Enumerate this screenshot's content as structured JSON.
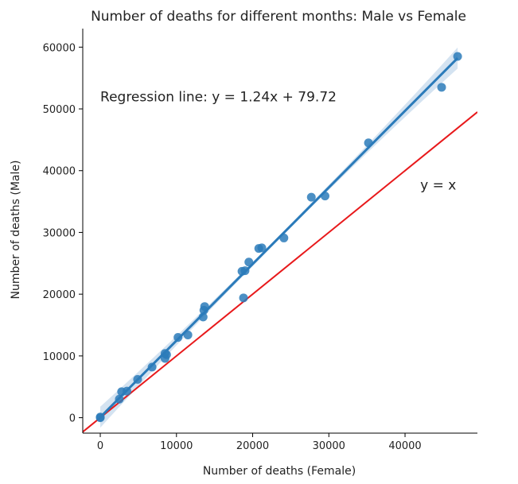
{
  "chart_data": {
    "type": "scatter",
    "title": "Number of deaths for different months: Male vs Female",
    "xlabel": "Number of deaths (Female)",
    "ylabel": "Number of deaths (Male)",
    "xlim": [
      -2300,
      49500
    ],
    "ylim": [
      -2500,
      63000
    ],
    "x_ticks": [
      0,
      10000,
      20000,
      30000,
      40000
    ],
    "y_ticks": [
      0,
      10000,
      20000,
      30000,
      40000,
      50000,
      60000
    ],
    "grid": false,
    "points": [
      {
        "x": 0,
        "y": 0
      },
      {
        "x": 0,
        "y": 100
      },
      {
        "x": 2500,
        "y": 3000
      },
      {
        "x": 2800,
        "y": 4200
      },
      {
        "x": 3500,
        "y": 4300
      },
      {
        "x": 4900,
        "y": 6200
      },
      {
        "x": 6800,
        "y": 8200
      },
      {
        "x": 8500,
        "y": 9600
      },
      {
        "x": 8500,
        "y": 10400
      },
      {
        "x": 8700,
        "y": 10200
      },
      {
        "x": 10200,
        "y": 13000
      },
      {
        "x": 11500,
        "y": 13400
      },
      {
        "x": 13500,
        "y": 16300
      },
      {
        "x": 13600,
        "y": 17400
      },
      {
        "x": 13700,
        "y": 18000
      },
      {
        "x": 18600,
        "y": 23700
      },
      {
        "x": 18800,
        "y": 19400
      },
      {
        "x": 19000,
        "y": 23800
      },
      {
        "x": 19500,
        "y": 25200
      },
      {
        "x": 20800,
        "y": 27400
      },
      {
        "x": 21200,
        "y": 27500
      },
      {
        "x": 24100,
        "y": 29100
      },
      {
        "x": 27700,
        "y": 35700
      },
      {
        "x": 29500,
        "y": 35900
      },
      {
        "x": 35200,
        "y": 44500
      },
      {
        "x": 44800,
        "y": 53500
      },
      {
        "x": 46900,
        "y": 58500
      }
    ],
    "regression": {
      "slope": 1.24,
      "intercept": 79.72,
      "label": "Regression line: y = 1.24x + 79.72",
      "color": "#2b7bba"
    },
    "reference_line": {
      "slope": 1,
      "intercept": 0,
      "label": "y = x",
      "color": "#e8191b"
    },
    "point_color": "#2b7bba",
    "ci_color": "#9fc2e0",
    "annotations": [
      {
        "text": "Regression line: y = 1.24x + 79.72",
        "x": 0,
        "y": 52000
      },
      {
        "text": "y = x",
        "x": 42000,
        "y": 37700
      }
    ]
  }
}
